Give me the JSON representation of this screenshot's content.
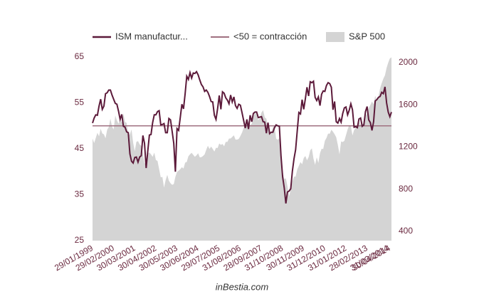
{
  "chart_data": {
    "type": "line",
    "categories": [
      "29/01/1999",
      null,
      null,
      null,
      null,
      null,
      null,
      null,
      null,
      null,
      null,
      null,
      null,
      "29/02/2000",
      null,
      null,
      null,
      null,
      null,
      null,
      null,
      null,
      null,
      null,
      null,
      null,
      "30/03/2001",
      null,
      null,
      null,
      null,
      null,
      null,
      null,
      null,
      null,
      null,
      null,
      null,
      "30/04/2002",
      null,
      null,
      null,
      null,
      null,
      null,
      null,
      null,
      null,
      null,
      null,
      null,
      "30/05/2003",
      null,
      null,
      null,
      null,
      null,
      null,
      null,
      null,
      null,
      null,
      null,
      null,
      "30/06/2004",
      null,
      null,
      null,
      null,
      null,
      null,
      null,
      null,
      null,
      null,
      null,
      null,
      "29/07/2005",
      null,
      null,
      null,
      null,
      null,
      null,
      null,
      null,
      null,
      null,
      null,
      null,
      "31/08/2006",
      null,
      null,
      null,
      null,
      null,
      null,
      null,
      null,
      null,
      null,
      null,
      null,
      "28/09/2007",
      null,
      null,
      null,
      null,
      null,
      null,
      null,
      null,
      null,
      null,
      null,
      null,
      "31/10/2008",
      null,
      null,
      null,
      null,
      null,
      null,
      null,
      null,
      null,
      null,
      null,
      null,
      "30/11/2009",
      null,
      null,
      null,
      null,
      null,
      null,
      null,
      null,
      null,
      null,
      null,
      null,
      "31/12/2010",
      null,
      null,
      null,
      null,
      null,
      null,
      null,
      null,
      null,
      null,
      null,
      null,
      "31/01/2012",
      null,
      null,
      null,
      null,
      null,
      null,
      null,
      null,
      null,
      null,
      null,
      null,
      "28/02/2013",
      null,
      null,
      null,
      null,
      null,
      null,
      null,
      null,
      null,
      null,
      null,
      null,
      "31/03/2014",
      "30/04/2014",
      null
    ],
    "series": [
      {
        "name": "ISM manufactur...",
        "color": "#5c1a3a",
        "values": [
          50.6,
          51.7,
          52.4,
          52.3,
          54.3,
          55.8,
          53.6,
          54.3,
          57.0,
          57.2,
          57.8,
          57.8,
          56.7,
          55.8,
          54.9,
          54.7,
          53.2,
          51.4,
          52.5,
          49.9,
          49.7,
          48.7,
          48.5,
          43.9,
          42.3,
          41.9,
          43.1,
          43.2,
          42.1,
          43.2,
          43.5,
          47.9,
          46.2,
          40.8,
          44.5,
          48.0,
          48.1,
          50.7,
          52.4,
          52.4,
          53.1,
          53.3,
          50.2,
          50.3,
          50.5,
          48.5,
          48.5,
          51.6,
          51.3,
          48.8,
          46.2,
          40.0,
          49.4,
          49.0,
          51.8,
          54.7,
          53.7,
          57.0,
          60.8,
          60.1,
          61.6,
          60.4,
          61.5,
          61.4,
          61.8,
          61.1,
          60.0,
          59.0,
          58.5,
          57.5,
          57.8,
          57.3,
          56.4,
          55.3,
          55.2,
          52.3,
          51.4,
          53.8,
          56.6,
          53.6,
          57.4,
          57.1,
          56.1,
          55.6,
          54.8,
          56.7,
          55.2,
          56.3,
          54.4,
          53.8,
          54.7,
          54.5,
          52.9,
          51.2,
          49.5,
          51.4,
          49.3,
          52.3,
          50.9,
          52.7,
          53.0,
          53.0,
          51.8,
          51.9,
          52.0,
          50.9,
          50.8,
          48.4,
          50.7,
          48.3,
          48.6,
          48.6,
          49.6,
          50.2,
          50.0,
          49.9,
          43.5,
          38.9,
          36.5,
          33.1,
          35.6,
          35.8,
          36.3,
          40.1,
          42.8,
          44.8,
          48.9,
          52.9,
          52.6,
          55.7,
          53.6,
          55.9,
          58.4,
          56.5,
          59.6,
          59.4,
          59.7,
          56.2,
          55.5,
          56.3,
          54.4,
          56.9,
          57.6,
          57.5,
          58.8,
          59.4,
          59.2,
          58.4,
          53.5,
          55.3,
          50.9,
          50.6,
          51.6,
          50.8,
          52.7,
          53.9,
          54.1,
          52.4,
          53.4,
          54.8,
          53.5,
          49.7,
          49.8,
          49.6,
          51.5,
          51.7,
          49.9,
          50.2,
          53.1,
          54.2,
          51.3,
          50.7,
          49.0,
          50.9,
          55.4,
          55.7,
          56.2,
          56.4,
          57.3,
          57.0,
          58.5,
          55.0,
          53.0,
          52.0,
          53.0
        ]
      },
      {
        "name": "S&P 500",
        "color": "#d4d4d4",
        "axis": "y2",
        "values": [
          1280,
          1238,
          1286,
          1335,
          1301,
          1373,
          1329,
          1320,
          1283,
          1363,
          1389,
          1469,
          1394,
          1366,
          1499,
          1452,
          1421,
          1455,
          1431,
          1518,
          1437,
          1429,
          1315,
          1320,
          1366,
          1240,
          1160,
          1249,
          1256,
          1224,
          1211,
          1134,
          1041,
          1060,
          1139,
          1148,
          1130,
          1107,
          1147,
          1077,
          1067,
          990,
          912,
          916,
          815,
          886,
          936,
          880,
          856,
          841,
          848,
          917,
          964,
          975,
          990,
          1008,
          996,
          1051,
          1058,
          1112,
          1131,
          1145,
          1126,
          1107,
          1121,
          1141,
          1102,
          1104,
          1115,
          1130,
          1174,
          1212,
          1181,
          1204,
          1181,
          1157,
          1192,
          1191,
          1234,
          1220,
          1229,
          1207,
          1249,
          1248,
          1280,
          1281,
          1295,
          1311,
          1270,
          1270,
          1277,
          1304,
          1336,
          1378,
          1401,
          1418,
          1438,
          1407,
          1421,
          1482,
          1531,
          1503,
          1455,
          1474,
          1527,
          1549,
          1481,
          1468,
          1379,
          1331,
          1323,
          1386,
          1400,
          1280,
          1267,
          1283,
          1165,
          969,
          896,
          903,
          826,
          735,
          798,
          873,
          919,
          919,
          987,
          1021,
          1057,
          1036,
          1096,
          1115,
          1074,
          1104,
          1169,
          1187,
          1089,
          1031,
          1102,
          1049,
          1141,
          1183,
          1181,
          1258,
          1286,
          1327,
          1326,
          1364,
          1345,
          1321,
          1292,
          1219,
          1131,
          1253,
          1247,
          1258,
          1312,
          1366,
          1408,
          1398,
          1310,
          1362,
          1379,
          1407,
          1441,
          1412,
          1416,
          1426,
          1498,
          1515,
          1569,
          1598,
          1631,
          1606,
          1686,
          1633,
          1682,
          1757,
          1806,
          1848,
          1880,
          1950,
          2000,
          2040,
          2050
        ]
      }
    ],
    "threshold": {
      "name": "<50 = contracción",
      "value": 50,
      "color": "#a07080"
    },
    "ylim": [
      25,
      65
    ],
    "yticks": [
      25,
      35,
      45,
      55,
      65
    ],
    "y2lim": [
      312,
      2054
    ],
    "y2ticks": [
      400,
      800,
      1200,
      1600,
      2000
    ],
    "source": "inBestia.com"
  }
}
